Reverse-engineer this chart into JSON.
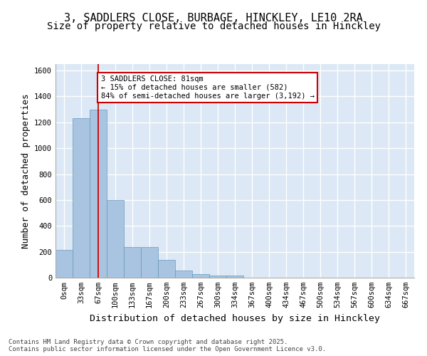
{
  "title_line1": "3, SADDLERS CLOSE, BURBAGE, HINCKLEY, LE10 2RA",
  "title_line2": "Size of property relative to detached houses in Hinckley",
  "xlabel": "Distribution of detached houses by size in Hinckley",
  "ylabel": "Number of detached properties",
  "bar_values": [
    215,
    1230,
    1300,
    600,
    235,
    235,
    140,
    55,
    30,
    15,
    15,
    0,
    0,
    0,
    0,
    0,
    0,
    0,
    0,
    0,
    0
  ],
  "bar_labels": [
    "0sqm",
    "33sqm",
    "67sqm",
    "100sqm",
    "133sqm",
    "167sqm",
    "200sqm",
    "233sqm",
    "267sqm",
    "300sqm",
    "334sqm",
    "367sqm",
    "400sqm",
    "434sqm",
    "467sqm",
    "500sqm",
    "534sqm",
    "567sqm",
    "600sqm",
    "634sqm",
    "667sqm"
  ],
  "bar_color": "#a8c4e0",
  "bar_edge_color": "#6699bb",
  "background_color": "#dce8f5",
  "grid_color": "#ffffff",
  "annotation_text": "3 SADDLERS CLOSE: 81sqm\n← 15% of detached houses are smaller (582)\n84% of semi-detached houses are larger (3,192) →",
  "annotation_box_color": "#ffffff",
  "annotation_box_edge_color": "#cc0000",
  "vline_color": "#cc0000",
  "vline_x": 2.0,
  "ylim": [
    0,
    1650
  ],
  "yticks": [
    0,
    200,
    400,
    600,
    800,
    1000,
    1200,
    1400,
    1600
  ],
  "footnote": "Contains HM Land Registry data © Crown copyright and database right 2025.\nContains public sector information licensed under the Open Government Licence v3.0.",
  "title_fontsize": 11,
  "subtitle_fontsize": 10,
  "axis_label_fontsize": 9,
  "tick_fontsize": 7.5,
  "annotation_fontsize": 7.5,
  "footnote_fontsize": 6.5
}
